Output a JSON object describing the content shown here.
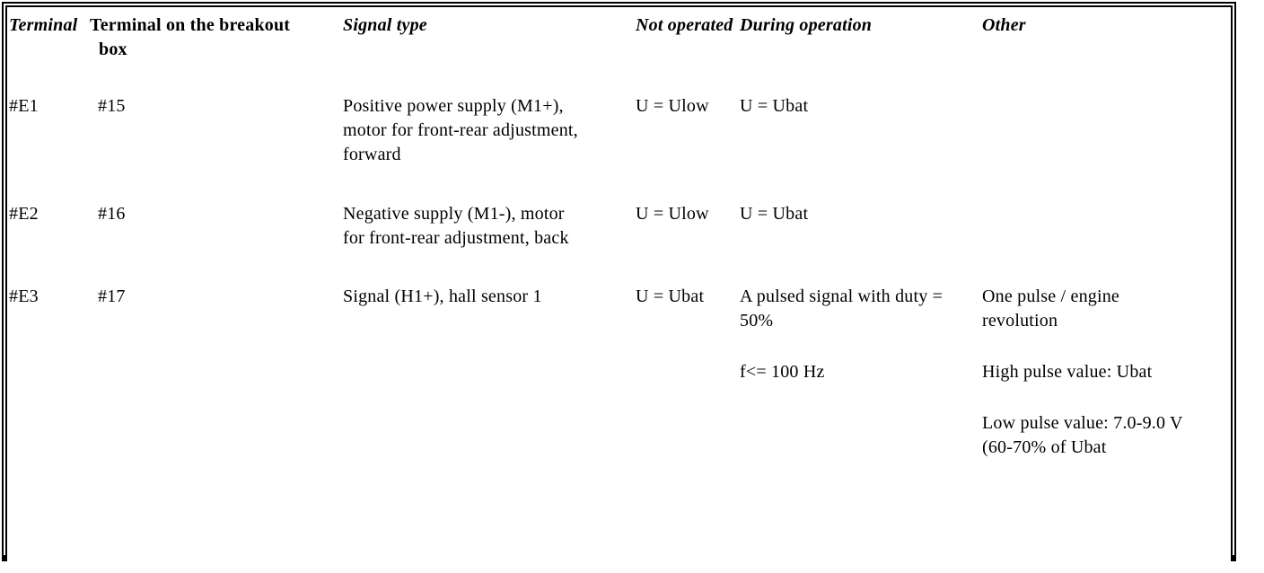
{
  "table": {
    "headers": {
      "terminal": "Terminal",
      "breakout": "Terminal on the breakout\nbox",
      "signal_type": "Signal type",
      "not_operated": "Not operated",
      "during_operation": "During operation",
      "other": "Other"
    },
    "rows": [
      {
        "terminal": "#E1",
        "breakout": "#15",
        "signal_type": "Positive power supply (M1+),\nmotor for front-rear adjustment,\nforward",
        "not_operated": "U = Ulow",
        "during_operation": [
          "U = Ubat"
        ],
        "other": []
      },
      {
        "terminal": "#E2",
        "breakout": "#16",
        "signal_type": "Negative supply (M1-), motor\nfor front-rear adjustment, back",
        "not_operated": "U = Ulow",
        "during_operation": [
          "U = Ubat"
        ],
        "other": []
      },
      {
        "terminal": "#E3",
        "breakout": "#17",
        "signal_type": "Signal (H1+), hall sensor 1",
        "not_operated": "U = Ubat",
        "during_operation": [
          "A pulsed signal with duty =\n50%",
          "f<= 100 Hz"
        ],
        "other": [
          "One pulse / engine\nrevolution",
          "High pulse value: Ubat",
          "Low pulse value: 7.0-9.0 V\n(60-70% of Ubat"
        ]
      }
    ]
  }
}
